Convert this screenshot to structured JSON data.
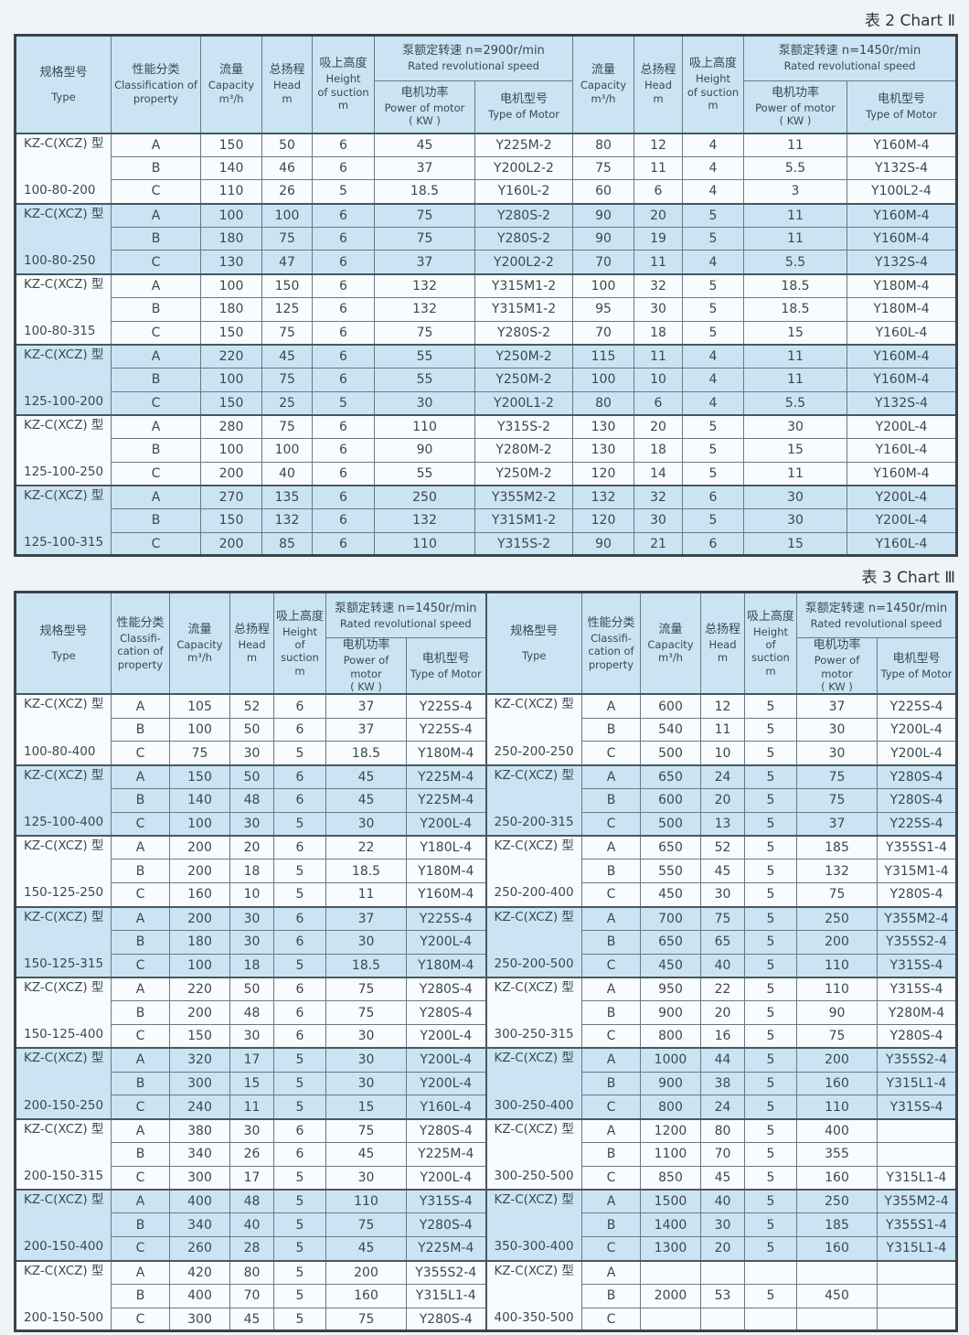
{
  "page": {
    "title_chart2": "表 2  Chart Ⅱ",
    "title_chart3": "表 3  Chart Ⅲ"
  },
  "colors": {
    "row_shade": "#cbe4f4",
    "row_plain": "#f9fcfe",
    "border_dark": "#39434b",
    "text": "#3a4850"
  },
  "headers": {
    "type_cn": "规格型号",
    "type_en": "Type",
    "class_cn": "性能分类",
    "class_en": "Classification of property",
    "class3_en": "Classifi-cation of property",
    "capacity_cn": "流量",
    "capacity_en": "Capacity",
    "capacity_unit": "m³/h",
    "head_cn": "总扬程",
    "head_en": "Head",
    "head_unit": "m",
    "suction_cn": "吸上高度",
    "suction_en1": "Height",
    "suction_en2": "of suction",
    "suction_unit": "m",
    "speed2900_cn": "泵额定转速 n=2900r/min",
    "speed1450_cn": "泵额定转速 n=1450r/min",
    "speed_en": "Rated revolutional speed",
    "power_cn": "电机功率",
    "power_en": "Power of motor",
    "power_unit": "( KW )",
    "motor_cn": "电机型号",
    "motor_en": "Type of Motor"
  },
  "table2": {
    "groups": [
      {
        "model": "KZ-C(XCZ) 型",
        "size": "100-80-200",
        "shaded": false,
        "rows": [
          [
            "A",
            "150",
            "50",
            "6",
            "45",
            "Y225M-2",
            "80",
            "12",
            "4",
            "11",
            "Y160M-4"
          ],
          [
            "B",
            "140",
            "46",
            "6",
            "37",
            "Y200L2-2",
            "75",
            "11",
            "4",
            "5.5",
            "Y132S-4"
          ],
          [
            "C",
            "110",
            "26",
            "5",
            "18.5",
            "Y160L-2",
            "60",
            "6",
            "4",
            "3",
            "Y100L2-4"
          ]
        ]
      },
      {
        "model": "KZ-C(XCZ) 型",
        "size": "100-80-250",
        "shaded": true,
        "rows": [
          [
            "A",
            "100",
            "100",
            "6",
            "75",
            "Y280S-2",
            "90",
            "20",
            "5",
            "11",
            "Y160M-4"
          ],
          [
            "B",
            "180",
            "75",
            "6",
            "75",
            "Y280S-2",
            "90",
            "19",
            "5",
            "11",
            "Y160M-4"
          ],
          [
            "C",
            "130",
            "47",
            "6",
            "37",
            "Y200L2-2",
            "70",
            "11",
            "4",
            "5.5",
            "Y132S-4"
          ]
        ]
      },
      {
        "model": "KZ-C(XCZ) 型",
        "size": "100-80-315",
        "shaded": false,
        "rows": [
          [
            "A",
            "100",
            "150",
            "6",
            "132",
            "Y315M1-2",
            "100",
            "32",
            "5",
            "18.5",
            "Y180M-4"
          ],
          [
            "B",
            "180",
            "125",
            "6",
            "132",
            "Y315M1-2",
            "95",
            "30",
            "5",
            "18.5",
            "Y180M-4"
          ],
          [
            "C",
            "150",
            "75",
            "6",
            "75",
            "Y280S-2",
            "70",
            "18",
            "5",
            "15",
            "Y160L-4"
          ]
        ]
      },
      {
        "model": "KZ-C(XCZ) 型",
        "size": "125-100-200",
        "shaded": true,
        "rows": [
          [
            "A",
            "220",
            "45",
            "6",
            "55",
            "Y250M-2",
            "115",
            "11",
            "4",
            "11",
            "Y160M-4"
          ],
          [
            "B",
            "100",
            "75",
            "6",
            "55",
            "Y250M-2",
            "100",
            "10",
            "4",
            "11",
            "Y160M-4"
          ],
          [
            "C",
            "150",
            "25",
            "5",
            "30",
            "Y200L1-2",
            "80",
            "6",
            "4",
            "5.5",
            "Y132S-4"
          ]
        ]
      },
      {
        "model": "KZ-C(XCZ) 型",
        "size": "125-100-250",
        "shaded": false,
        "rows": [
          [
            "A",
            "280",
            "75",
            "6",
            "110",
            "Y315S-2",
            "130",
            "20",
            "5",
            "30",
            "Y200L-4"
          ],
          [
            "B",
            "100",
            "100",
            "6",
            "90",
            "Y280M-2",
            "130",
            "18",
            "5",
            "15",
            "Y160L-4"
          ],
          [
            "C",
            "200",
            "40",
            "6",
            "55",
            "Y250M-2",
            "120",
            "14",
            "5",
            "11",
            "Y160M-4"
          ]
        ]
      },
      {
        "model": "KZ-C(XCZ) 型",
        "size": "125-100-315",
        "shaded": true,
        "rows": [
          [
            "A",
            "270",
            "135",
            "6",
            "250",
            "Y355M2-2",
            "132",
            "32",
            "6",
            "30",
            "Y200L-4"
          ],
          [
            "B",
            "150",
            "132",
            "6",
            "132",
            "Y315M1-2",
            "120",
            "30",
            "5",
            "30",
            "Y200L-4"
          ],
          [
            "C",
            "200",
            "85",
            "6",
            "110",
            "Y315S-2",
            "90",
            "21",
            "6",
            "15",
            "Y160L-4"
          ]
        ]
      }
    ]
  },
  "table3": {
    "left_groups": [
      {
        "model": "KZ-C(XCZ) 型",
        "size": "100-80-400",
        "shaded": false,
        "rows": [
          [
            "A",
            "105",
            "52",
            "6",
            "37",
            "Y225S-4"
          ],
          [
            "B",
            "100",
            "50",
            "6",
            "37",
            "Y225S-4"
          ],
          [
            "C",
            "75",
            "30",
            "5",
            "18.5",
            "Y180M-4"
          ]
        ]
      },
      {
        "model": "KZ-C(XCZ) 型",
        "size": "125-100-400",
        "shaded": true,
        "rows": [
          [
            "A",
            "150",
            "50",
            "6",
            "45",
            "Y225M-4"
          ],
          [
            "B",
            "140",
            "48",
            "6",
            "45",
            "Y225M-4"
          ],
          [
            "C",
            "100",
            "30",
            "5",
            "30",
            "Y200L-4"
          ]
        ]
      },
      {
        "model": "KZ-C(XCZ) 型",
        "size": "150-125-250",
        "shaded": false,
        "rows": [
          [
            "A",
            "200",
            "20",
            "6",
            "22",
            "Y180L-4"
          ],
          [
            "B",
            "200",
            "18",
            "5",
            "18.5",
            "Y180M-4"
          ],
          [
            "C",
            "160",
            "10",
            "5",
            "11",
            "Y160M-4"
          ]
        ]
      },
      {
        "model": "KZ-C(XCZ) 型",
        "size": "150-125-315",
        "shaded": true,
        "rows": [
          [
            "A",
            "200",
            "30",
            "6",
            "37",
            "Y225S-4"
          ],
          [
            "B",
            "180",
            "30",
            "6",
            "30",
            "Y200L-4"
          ],
          [
            "C",
            "100",
            "18",
            "5",
            "18.5",
            "Y180M-4"
          ]
        ]
      },
      {
        "model": "KZ-C(XCZ) 型",
        "size": "150-125-400",
        "shaded": false,
        "rows": [
          [
            "A",
            "220",
            "50",
            "6",
            "75",
            "Y280S-4"
          ],
          [
            "B",
            "200",
            "48",
            "6",
            "75",
            "Y280S-4"
          ],
          [
            "C",
            "150",
            "30",
            "6",
            "30",
            "Y200L-4"
          ]
        ]
      },
      {
        "model": "KZ-C(XCZ) 型",
        "size": "200-150-250",
        "shaded": true,
        "rows": [
          [
            "A",
            "320",
            "17",
            "5",
            "30",
            "Y200L-4"
          ],
          [
            "B",
            "300",
            "15",
            "5",
            "30",
            "Y200L-4"
          ],
          [
            "C",
            "240",
            "11",
            "5",
            "15",
            "Y160L-4"
          ]
        ]
      },
      {
        "model": "KZ-C(XCZ) 型",
        "size": "200-150-315",
        "shaded": false,
        "rows": [
          [
            "A",
            "380",
            "30",
            "6",
            "75",
            "Y280S-4"
          ],
          [
            "B",
            "340",
            "26",
            "6",
            "45",
            "Y225M-4"
          ],
          [
            "C",
            "300",
            "17",
            "5",
            "30",
            "Y200L-4"
          ]
        ]
      },
      {
        "model": "KZ-C(XCZ) 型",
        "size": "200-150-400",
        "shaded": true,
        "rows": [
          [
            "A",
            "400",
            "48",
            "5",
            "110",
            "Y315S-4"
          ],
          [
            "B",
            "340",
            "40",
            "5",
            "75",
            "Y280S-4"
          ],
          [
            "C",
            "260",
            "28",
            "5",
            "45",
            "Y225M-4"
          ]
        ]
      },
      {
        "model": "KZ-C(XCZ) 型",
        "size": "200-150-500",
        "shaded": false,
        "rows": [
          [
            "A",
            "420",
            "80",
            "5",
            "200",
            "Y355S2-4"
          ],
          [
            "B",
            "400",
            "70",
            "5",
            "160",
            "Y315L1-4"
          ],
          [
            "C",
            "300",
            "45",
            "5",
            "75",
            "Y280S-4"
          ]
        ]
      }
    ],
    "right_groups": [
      {
        "model": "KZ-C(XCZ) 型",
        "size": "250-200-250",
        "shaded": false,
        "rows": [
          [
            "A",
            "600",
            "12",
            "5",
            "37",
            "Y225S-4"
          ],
          [
            "B",
            "540",
            "11",
            "5",
            "30",
            "Y200L-4"
          ],
          [
            "C",
            "500",
            "10",
            "5",
            "30",
            "Y200L-4"
          ]
        ]
      },
      {
        "model": "KZ-C(XCZ) 型",
        "size": "250-200-315",
        "shaded": true,
        "rows": [
          [
            "A",
            "650",
            "24",
            "5",
            "75",
            "Y280S-4"
          ],
          [
            "B",
            "600",
            "20",
            "5",
            "75",
            "Y280S-4"
          ],
          [
            "C",
            "500",
            "13",
            "5",
            "37",
            "Y225S-4"
          ]
        ]
      },
      {
        "model": "KZ-C(XCZ) 型",
        "size": "250-200-400",
        "shaded": false,
        "rows": [
          [
            "A",
            "650",
            "52",
            "5",
            "185",
            "Y355S1-4"
          ],
          [
            "B",
            "550",
            "45",
            "5",
            "132",
            "Y315M1-4"
          ],
          [
            "C",
            "450",
            "30",
            "5",
            "75",
            "Y280S-4"
          ]
        ]
      },
      {
        "model": "KZ-C(XCZ) 型",
        "size": "250-200-500",
        "shaded": true,
        "rows": [
          [
            "A",
            "700",
            "75",
            "5",
            "250",
            "Y355M2-4"
          ],
          [
            "B",
            "650",
            "65",
            "5",
            "200",
            "Y355S2-4"
          ],
          [
            "C",
            "450",
            "40",
            "5",
            "110",
            "Y315S-4"
          ]
        ]
      },
      {
        "model": "KZ-C(XCZ) 型",
        "size": "300-250-315",
        "shaded": false,
        "rows": [
          [
            "A",
            "950",
            "22",
            "5",
            "110",
            "Y315S-4"
          ],
          [
            "B",
            "900",
            "20",
            "5",
            "90",
            "Y280M-4"
          ],
          [
            "C",
            "800",
            "16",
            "5",
            "75",
            "Y280S-4"
          ]
        ]
      },
      {
        "model": "KZ-C(XCZ) 型",
        "size": "300-250-400",
        "shaded": true,
        "rows": [
          [
            "A",
            "1000",
            "44",
            "5",
            "200",
            "Y355S2-4"
          ],
          [
            "B",
            "900",
            "38",
            "5",
            "160",
            "Y315L1-4"
          ],
          [
            "C",
            "800",
            "24",
            "5",
            "110",
            "Y315S-4"
          ]
        ]
      },
      {
        "model": "KZ-C(XCZ) 型",
        "size": "300-250-500",
        "shaded": false,
        "rows": [
          [
            "A",
            "1200",
            "80",
            "5",
            "400",
            ""
          ],
          [
            "B",
            "1100",
            "70",
            "5",
            "355",
            ""
          ],
          [
            "C",
            "850",
            "45",
            "5",
            "160",
            "Y315L1-4"
          ]
        ]
      },
      {
        "model": "KZ-C(XCZ) 型",
        "size": "350-300-400",
        "shaded": true,
        "rows": [
          [
            "A",
            "1500",
            "40",
            "5",
            "250",
            "Y355M2-4"
          ],
          [
            "B",
            "1400",
            "30",
            "5",
            "185",
            "Y355S1-4"
          ],
          [
            "C",
            "1300",
            "20",
            "5",
            "160",
            "Y315L1-4"
          ]
        ]
      },
      {
        "model": "KZ-C(XCZ) 型",
        "size": "400-350-500",
        "shaded": false,
        "rows": [
          [
            "A",
            "",
            "",
            "",
            "",
            ""
          ],
          [
            "B",
            "2000",
            "53",
            "5",
            "450",
            ""
          ],
          [
            "C",
            "",
            "",
            "",
            "",
            ""
          ]
        ]
      }
    ]
  }
}
